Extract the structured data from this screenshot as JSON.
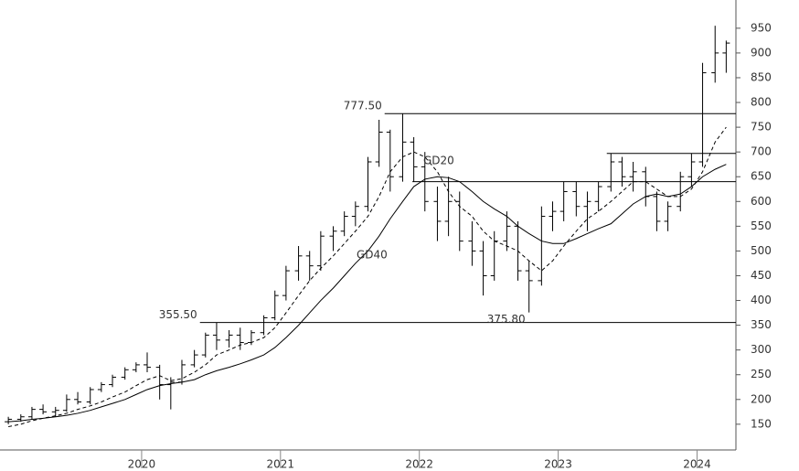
{
  "chart_data": {
    "type": "ohlc",
    "xlim": [
      2018.98,
      2024.28
    ],
    "xticks": [
      2020,
      2021,
      2022,
      2023,
      2024
    ],
    "ylim": [
      98,
      1007
    ],
    "yticks": [
      150,
      200,
      250,
      300,
      350,
      400,
      450,
      500,
      550,
      600,
      650,
      700,
      750,
      800,
      850,
      900,
      950
    ],
    "x": [
      2019.04,
      2019.13,
      2019.21,
      2019.29,
      2019.38,
      2019.46,
      2019.54,
      2019.63,
      2019.71,
      2019.79,
      2019.88,
      2019.96,
      2020.04,
      2020.13,
      2020.21,
      2020.29,
      2020.38,
      2020.46,
      2020.54,
      2020.63,
      2020.71,
      2020.79,
      2020.88,
      2020.96,
      2021.04,
      2021.13,
      2021.21,
      2021.29,
      2021.38,
      2021.46,
      2021.54,
      2021.63,
      2021.71,
      2021.79,
      2021.88,
      2021.96,
      2022.04,
      2022.13,
      2022.21,
      2022.29,
      2022.38,
      2022.46,
      2022.54,
      2022.63,
      2022.71,
      2022.79,
      2022.88,
      2022.96,
      2023.04,
      2023.13,
      2023.21,
      2023.29,
      2023.38,
      2023.46,
      2023.54,
      2023.63,
      2023.71,
      2023.79,
      2023.88,
      2023.96,
      2024.04,
      2024.13,
      2024.21
    ],
    "open": [
      155,
      160,
      165,
      180,
      175,
      178,
      200,
      195,
      220,
      230,
      245,
      260,
      270,
      265,
      230,
      235,
      270,
      290,
      330,
      320,
      330,
      315,
      335,
      365,
      410,
      460,
      490,
      470,
      530,
      540,
      570,
      590,
      680,
      740,
      650,
      720,
      670,
      600,
      560,
      600,
      520,
      500,
      450,
      520,
      550,
      460,
      440,
      570,
      580,
      620,
      590,
      600,
      630,
      680,
      650,
      660,
      610,
      560,
      590,
      650,
      680,
      860,
      900
    ],
    "high": [
      165,
      170,
      185,
      190,
      185,
      210,
      215,
      225,
      235,
      250,
      265,
      275,
      295,
      270,
      245,
      280,
      300,
      335,
      355.5,
      340,
      345,
      340,
      370,
      420,
      470,
      510,
      500,
      540,
      550,
      580,
      600,
      690,
      765,
      745,
      777.5,
      730,
      700,
      630,
      650,
      620,
      560,
      520,
      540,
      580,
      560,
      480,
      590,
      600,
      640,
      640,
      620,
      640,
      697,
      690,
      680,
      670,
      620,
      600,
      660,
      697,
      880,
      955,
      925
    ],
    "low": [
      150,
      155,
      160,
      170,
      165,
      175,
      190,
      190,
      215,
      225,
      240,
      255,
      255,
      200,
      180,
      230,
      265,
      285,
      300,
      305,
      300,
      310,
      330,
      360,
      400,
      440,
      440,
      460,
      500,
      530,
      550,
      580,
      670,
      620,
      640,
      640,
      580,
      520,
      530,
      500,
      470,
      410,
      440,
      500,
      440,
      375.8,
      430,
      540,
      560,
      570,
      540,
      580,
      620,
      630,
      620,
      590,
      540,
      540,
      580,
      630,
      670,
      840,
      860
    ],
    "close": [
      160,
      165,
      180,
      175,
      178,
      200,
      195,
      220,
      230,
      245,
      260,
      270,
      265,
      230,
      235,
      270,
      290,
      330,
      320,
      330,
      315,
      335,
      365,
      410,
      460,
      490,
      470,
      530,
      540,
      570,
      590,
      680,
      740,
      650,
      720,
      670,
      600,
      560,
      600,
      520,
      500,
      450,
      520,
      550,
      460,
      440,
      570,
      580,
      620,
      590,
      600,
      630,
      680,
      650,
      660,
      610,
      560,
      590,
      650,
      680,
      860,
      900,
      920
    ],
    "lines": [
      {
        "name": "GD20",
        "dash": true,
        "values": [
          145,
          150,
          157,
          162,
          167,
          172,
          180,
          187,
          195,
          205,
          215,
          228,
          240,
          248,
          238,
          242,
          255,
          270,
          290,
          300,
          310,
          315,
          325,
          345,
          375,
          410,
          440,
          465,
          490,
          515,
          540,
          570,
          610,
          660,
          690,
          700,
          690,
          660,
          620,
          590,
          570,
          540,
          520,
          510,
          500,
          480,
          460,
          480,
          510,
          540,
          565,
          580,
          600,
          620,
          640,
          640,
          625,
          610,
          610,
          625,
          660,
          720,
          750
        ]
      },
      {
        "name": "GD40",
        "dash": false,
        "values": [
          155,
          157,
          160,
          162,
          165,
          168,
          172,
          178,
          185,
          192,
          200,
          210,
          220,
          228,
          232,
          235,
          240,
          250,
          258,
          265,
          272,
          280,
          290,
          305,
          325,
          350,
          375,
          400,
          425,
          450,
          475,
          500,
          530,
          565,
          600,
          630,
          645,
          650,
          648,
          640,
          620,
          600,
          585,
          570,
          550,
          535,
          520,
          515,
          515,
          525,
          535,
          545,
          555,
          575,
          595,
          610,
          615,
          610,
          615,
          630,
          650,
          665,
          675
        ]
      }
    ],
    "levels": [
      {
        "value": 777.5,
        "label": "777.50",
        "x": 2021.75
      },
      {
        "value": 355.5,
        "label": "355.50",
        "x": 2020.42
      },
      {
        "value": 697,
        "x": 2023.35
      },
      {
        "value": 640,
        "x": 2021.95
      }
    ],
    "low_label": "375.80",
    "color": "#000000"
  }
}
